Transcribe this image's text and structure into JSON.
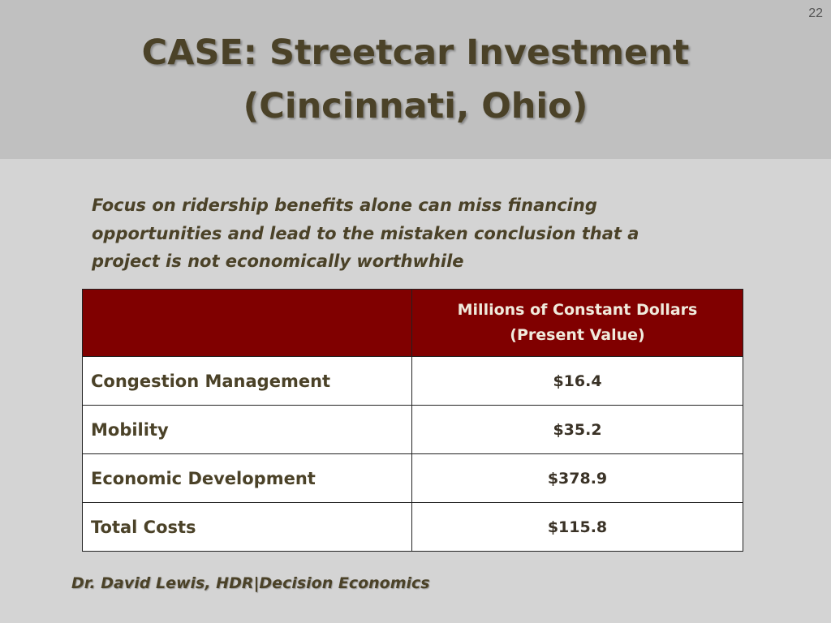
{
  "slide_number": "22",
  "title": {
    "lines": [
      "CASE: Streetcar Investment",
      "(Cincinnati, Ohio)"
    ]
  },
  "intro": {
    "lines": [
      "Focus on ridership benefits alone can miss financing",
      "opportunities and lead to the mistaken conclusion that a",
      "project is not economically worthwhile"
    ]
  },
  "table": {
    "header": [
      "Millions of Constant Dollars",
      "(Present Value)"
    ],
    "rows": [
      [
        "Congestion Management",
        "$16.4"
      ],
      [
        "Mobility",
        "$35.2"
      ],
      [
        "Economic Development",
        "$378.9"
      ],
      [
        "Total Costs",
        "$115.8"
      ]
    ]
  },
  "footer": "Dr. David Lewis, HDR|Decision Economics"
}
